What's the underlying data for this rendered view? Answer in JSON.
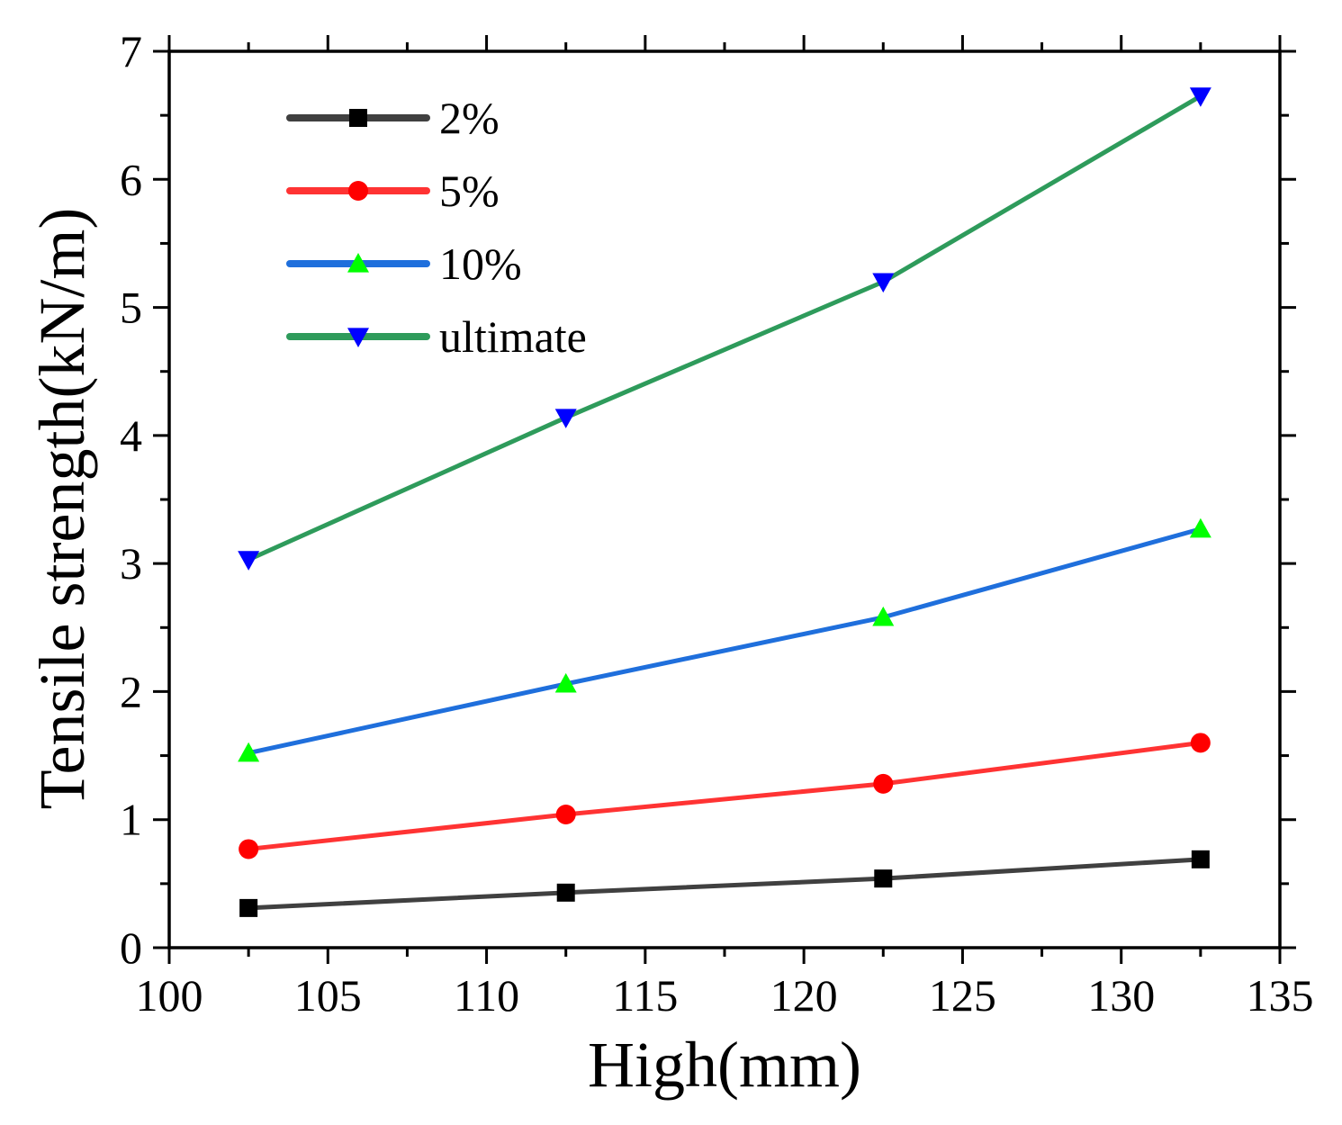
{
  "chart_data": {
    "type": "line",
    "title": "",
    "xlabel": "High(mm)",
    "ylabel": "Tensile strength(kN/m)",
    "xlim": [
      100,
      135
    ],
    "ylim": [
      0,
      7
    ],
    "x_ticks": [
      "100",
      "105",
      "110",
      "115",
      "120",
      "125",
      "130",
      "135"
    ],
    "y_ticks": [
      "0",
      "1",
      "2",
      "3",
      "4",
      "5",
      "6",
      "7"
    ],
    "x": [
      102.5,
      112.5,
      122.5,
      132.5
    ],
    "grid": false,
    "legend_position": "top-left",
    "series": [
      {
        "name": "2%",
        "values": [
          0.31,
          0.43,
          0.54,
          0.69
        ],
        "line_color": "#404040",
        "marker": "square",
        "marker_color": "#000000"
      },
      {
        "name": "5%",
        "values": [
          0.77,
          1.04,
          1.28,
          1.6
        ],
        "line_color": "#ff3333",
        "marker": "circle",
        "marker_color": "#ff0000"
      },
      {
        "name": "10%",
        "values": [
          1.52,
          2.06,
          2.58,
          3.27
        ],
        "line_color": "#1f6fdc",
        "marker": "triangle-up",
        "marker_color": "#00ff00"
      },
      {
        "name": "ultimate",
        "values": [
          3.03,
          4.14,
          5.2,
          6.65
        ],
        "line_color": "#2e9b5b",
        "marker": "triangle-down",
        "marker_color": "#0000ff"
      }
    ]
  }
}
